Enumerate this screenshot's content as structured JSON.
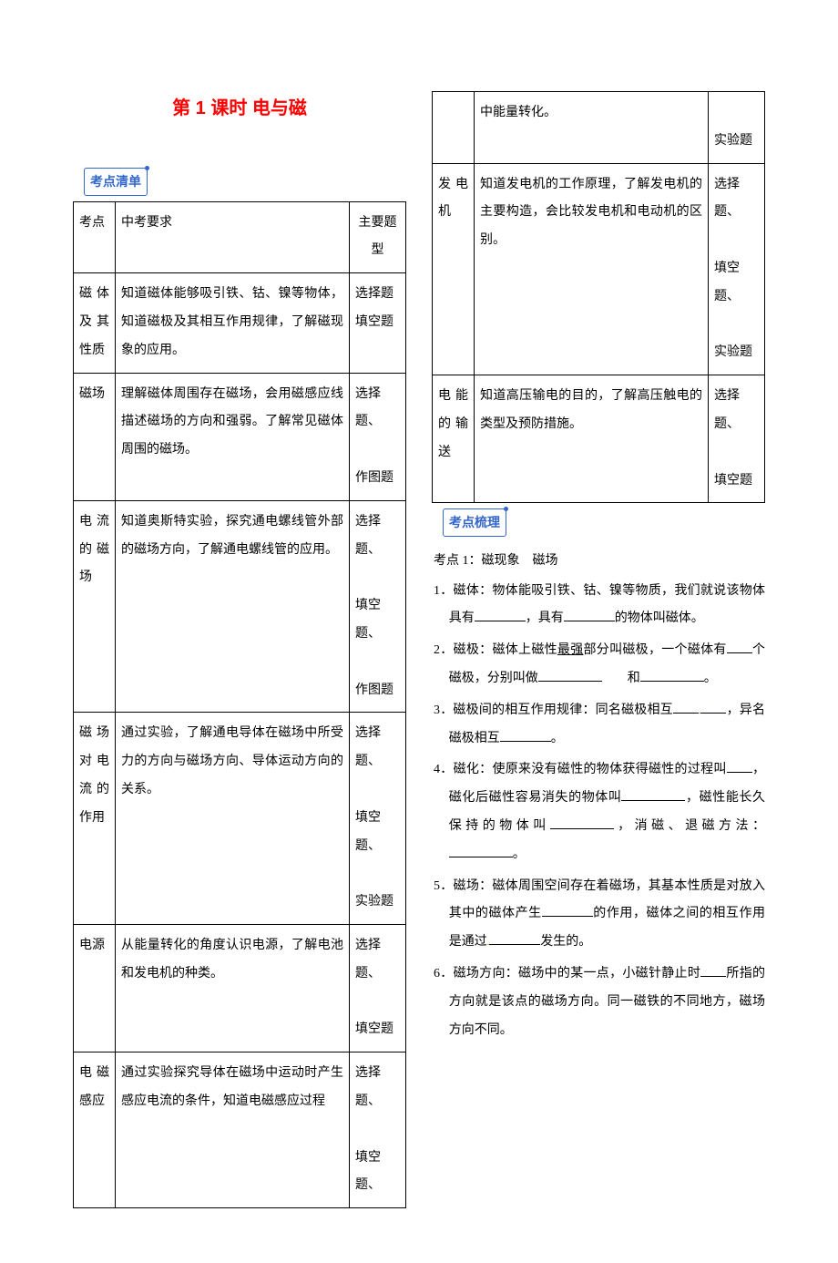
{
  "title": "第 1 课时  电与磁",
  "section_labels": {
    "list": "考点清单",
    "comb": "考点梳理"
  },
  "table_left": {
    "header": [
      "考点",
      "中考要求",
      "主要题型"
    ],
    "rows": [
      {
        "c1": "磁体及其性质",
        "c2": "知道磁体能够吸引铁、钴、镍等物体，知道磁极及其相互作用规律，了解磁现象的应用。",
        "c3": "选择题填空题"
      },
      {
        "c1": "磁场",
        "c2": "理解磁体周围存在磁场，会用磁感应线描述磁场的方向和强弱。了解常见磁体周围的磁场。",
        "c3": "选择题、\n\n作图题"
      },
      {
        "c1": "电流的磁场",
        "c2": "知道奥斯特实验，探究通电螺线管外部的磁场方向，了解通电螺线管的应用。",
        "c3": "选择题、\n\n填空题、\n\n作图题"
      },
      {
        "c1": "磁场对电流的作用",
        "c2": "通过实验，了解通电导体在磁场中所受力的方向与磁场方向、导体运动方向的关系。",
        "c3": "选择题、\n\n填空题、\n\n实验题"
      },
      {
        "c1": "电源",
        "c2": "从能量转化的角度认识电源，了解电池和发电机的种类。",
        "c3": "选择题、\n\n填空题"
      },
      {
        "c1": "电磁感应",
        "c2": "通过实验探究导体在磁场中运动时产生感应电流的条件，知道电磁感应过程",
        "c3": "选择题、\n\n填空题、"
      }
    ]
  },
  "table_right": {
    "rows": [
      {
        "c1": "",
        "c2": "中能量转化。",
        "c3": "\n实验题"
      },
      {
        "c1": "发电机",
        "c2": "知道发电机的工作原理，了解发电机的主要构造，会比较发电机和电动机的区别。",
        "c3": "选择题、\n\n填空题、\n\n实验题"
      },
      {
        "c1": "电能的输送",
        "c2": "知道高压输电的目的，了解高压触电的类型及预防措施。",
        "c3": "选择题、\n\n填空题"
      }
    ]
  },
  "kp": {
    "head": "考点 1：磁现象　磁场",
    "items": [
      {
        "n": "1．",
        "pre": "磁体：物体能吸引铁、钴、镍等物质，我们就说该物体具有",
        "mid": "，具有",
        "post": "的物体叫磁体。"
      },
      {
        "n": "2．",
        "text": "磁极：磁体上磁性<u>最强</u>部分叫磁极，一个磁体有____个磁极，分别叫做________　　和________。"
      },
      {
        "n": "3．",
        "text": "磁极间的相互作用规律：同名磁极相互____<span class='dot'>.</span>__，异名磁极相互______。"
      },
      {
        "n": "4．",
        "text": "磁化：使原来没有磁性的物体获得磁性的过程叫____，磁化后磁性容易消失的物体叫________，磁性能长久保持的物体叫________，消磁、退磁方法：__________。"
      },
      {
        "n": "5．",
        "text": "磁场：磁体周围空间存在着磁场，其基本性质是对放入其中的磁体产生______的作用，磁体之间的相互作用是通过<span class='dot'>.</span>______发生的。"
      },
      {
        "n": "6．",
        "text": "磁场方向：磁场中的某一点，小磁针静止时____所指的方向就是该点的磁场方向。同一磁铁的不同地方，磁场方向不同。"
      }
    ]
  }
}
